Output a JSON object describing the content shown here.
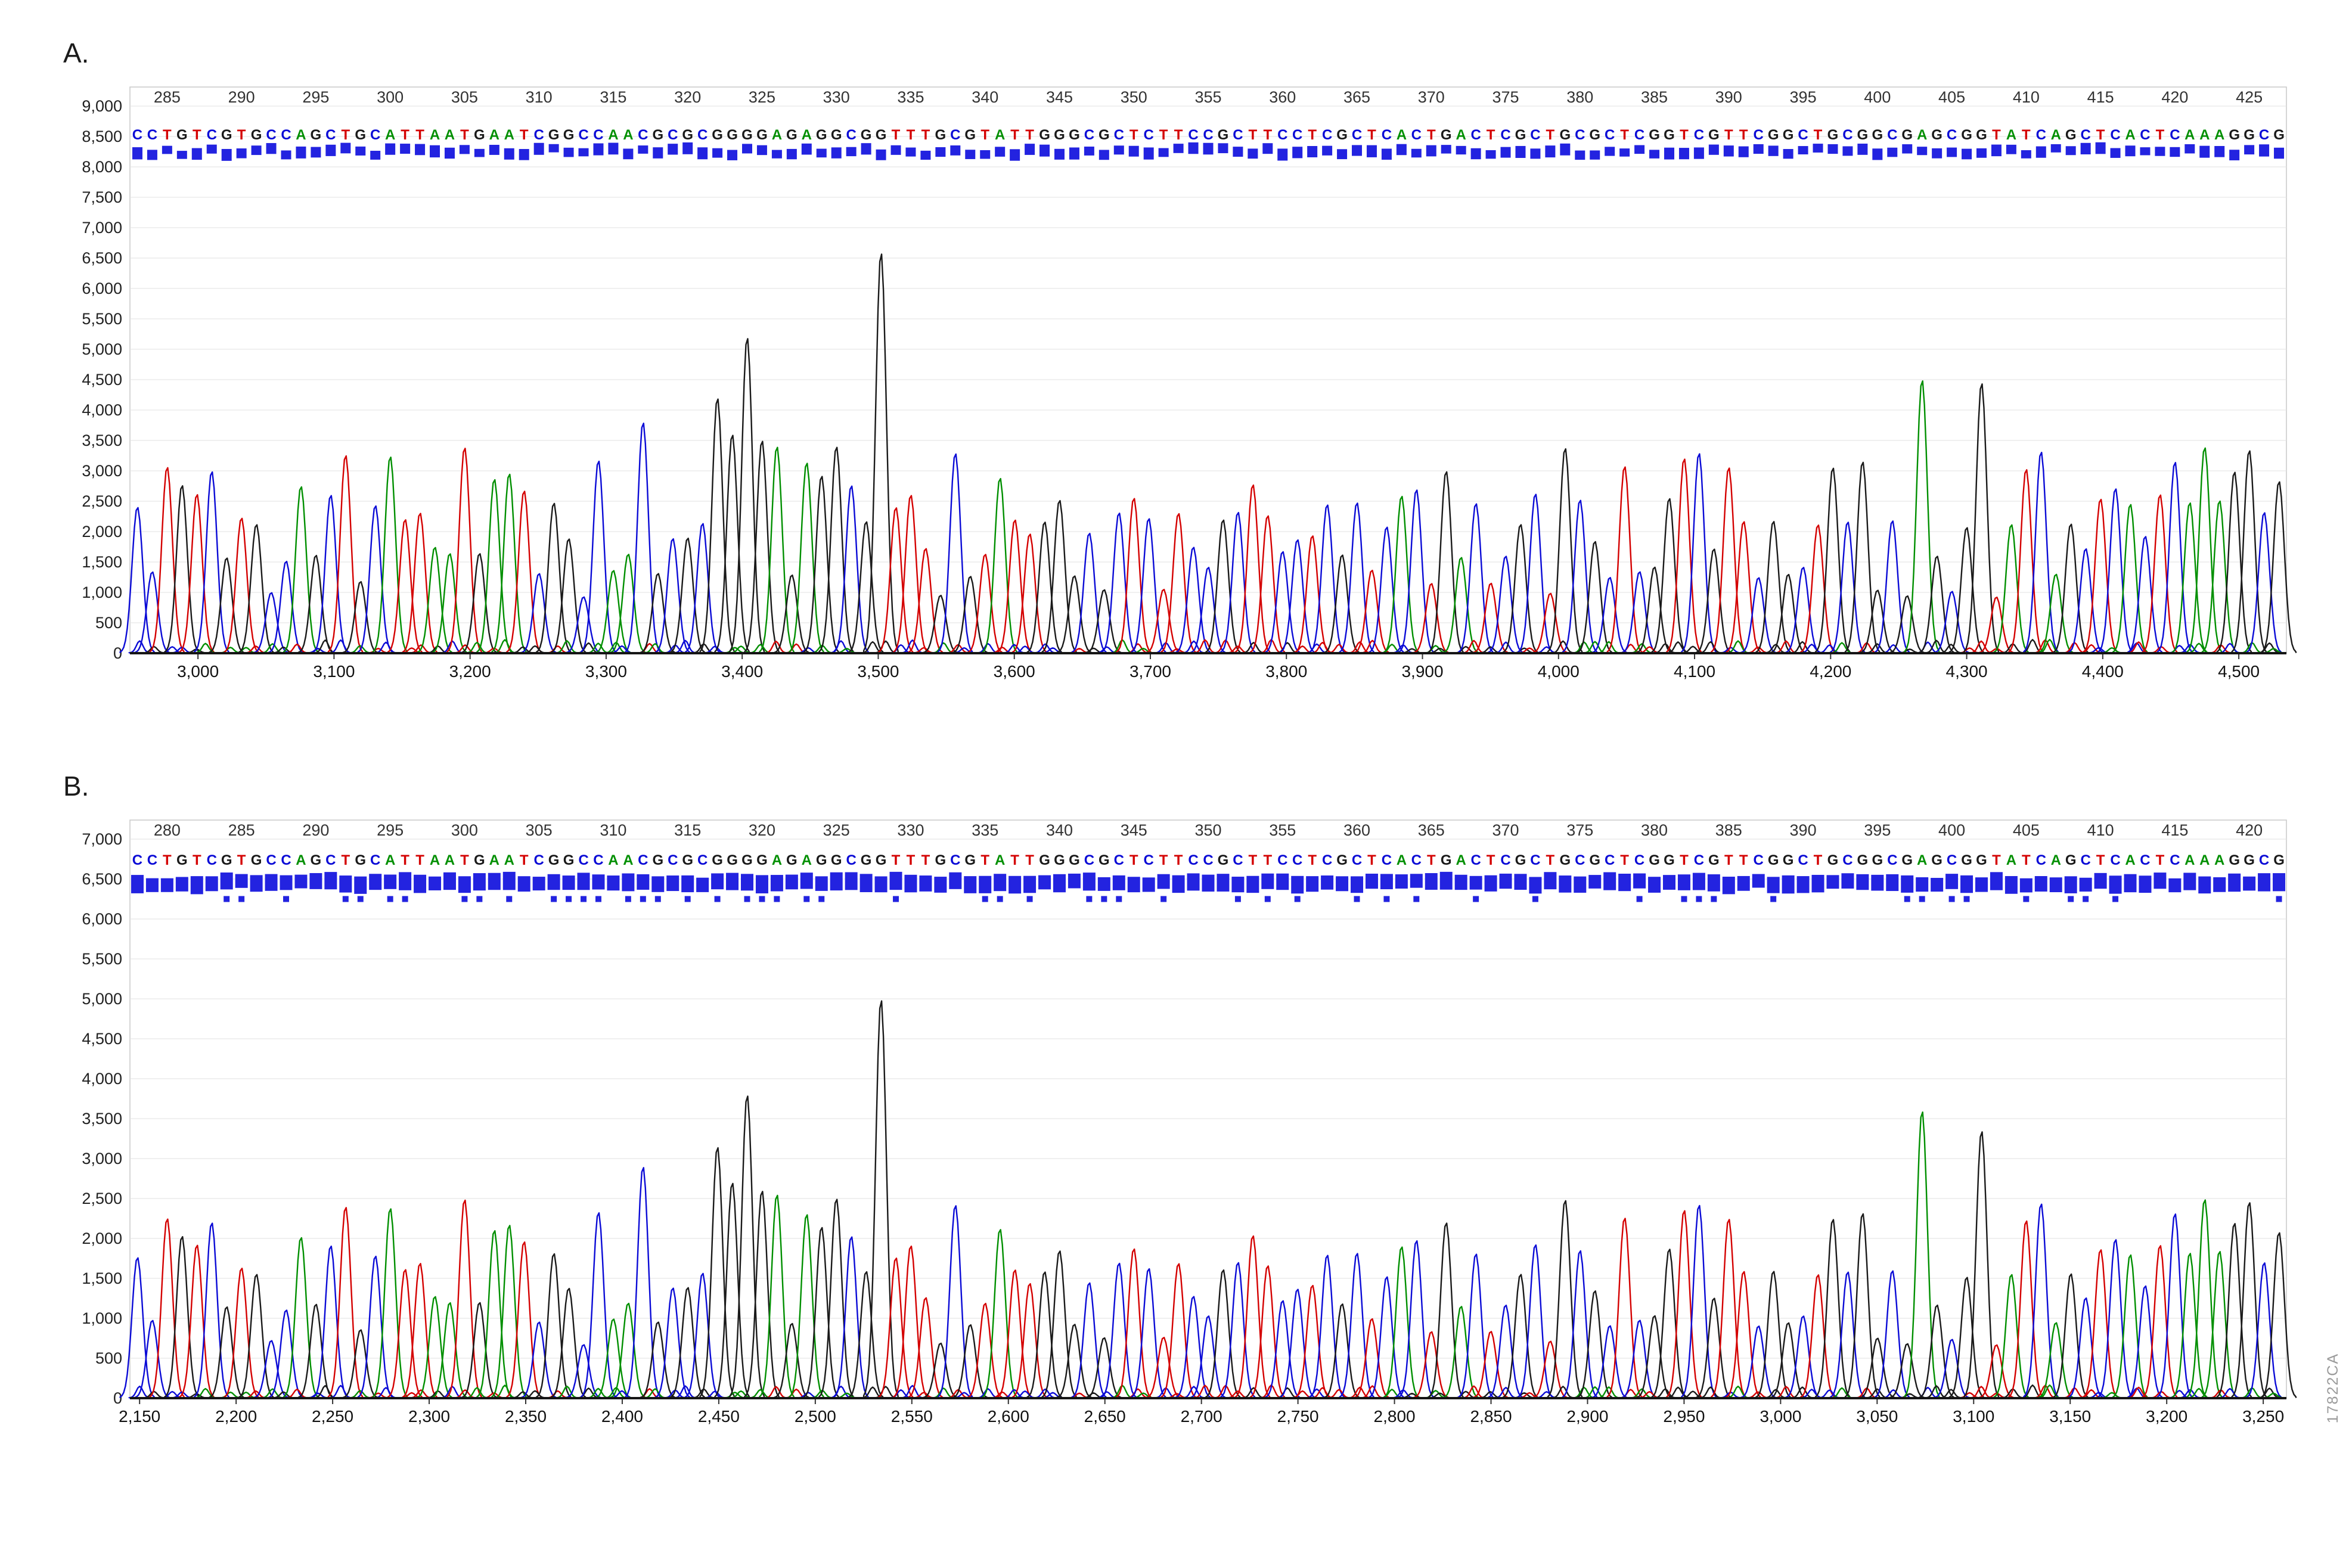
{
  "figure": {
    "watermark": "17822CA",
    "base_colors": {
      "A": "#008f00",
      "C": "#0b0bd6",
      "G": "#1a1a1a",
      "T": "#d40000"
    },
    "quality_bar_color": "#2323e0"
  },
  "panels": [
    {
      "label": "A."
    },
    {
      "label": "B."
    }
  ],
  "chart_data": [
    {
      "type": "line",
      "title": "Sanger sequencing electropherogram, panel A",
      "sequence": "CCTGTCGTGCCAGCTGCATTAATGAATCGGCCAACGCGCGGGGAGAGGCGGTTTGCGTATTGGGCGCTCTTCCGCTTCCTCGCTCACTGACTCGCTGCGCTCGGTCGTTCGGCTGCGGCGAGCGGTATCAGCTCACTCAAAGGCG",
      "first_base_position": 283,
      "base_position_ticks": [
        285,
        290,
        295,
        300,
        305,
        310,
        315,
        320,
        325,
        330,
        335,
        340,
        345,
        350,
        355,
        360,
        365,
        370,
        375,
        380,
        385,
        390,
        395,
        400,
        405,
        410,
        415,
        420,
        425
      ],
      "ylim": [
        0,
        9000
      ],
      "y_step": 500,
      "x_scan_range": [
        2950,
        4535
      ],
      "x_scan_ticks": [
        3000,
        3100,
        3200,
        3300,
        3400,
        3500,
        3600,
        3700,
        3800,
        3900,
        4000,
        4100,
        4200,
        4300,
        4400,
        4500
      ],
      "seq_y": 8450,
      "qbar": {
        "center": 8250,
        "h_min": 130,
        "h_max": 200,
        "jitter": 120,
        "width": 17,
        "sub": null
      },
      "peak_range": [
        900,
        3400
      ],
      "bump_range": [
        60,
        220
      ],
      "peak_overrides": {
        "34": 3800,
        "39": 4200,
        "40": 3600,
        "41": 5200,
        "42": 3500,
        "43": 3400,
        "47": 3400,
        "50": 6600,
        "120": 4500,
        "124": 4450
      },
      "seed": 42
    },
    {
      "type": "line",
      "title": "Sanger sequencing electropherogram, panel B",
      "sequence": "CCTGTCGTGCCAGCTGCATTAATGAATCGGCCAACGCGCGGGGAGAGGCGGTTTGCGTATTGGGCGCTCTTCCGCTTCCTCGCTCACTGACTCGCTGCGCTCGGTCGTTCGGCTGCGGCGAGCGGTATCAGCTCACTCAAAGGCG",
      "first_base_position": 278,
      "base_position_ticks": [
        280,
        285,
        290,
        295,
        300,
        305,
        310,
        315,
        320,
        325,
        330,
        335,
        340,
        345,
        350,
        355,
        360,
        365,
        370,
        375,
        380,
        385,
        390,
        395,
        400,
        405,
        410,
        415,
        420
      ],
      "ylim": [
        0,
        7000
      ],
      "y_step": 500,
      "x_scan_range": [
        2145,
        3262
      ],
      "x_scan_ticks": [
        2150,
        2200,
        2250,
        2300,
        2350,
        2400,
        2450,
        2500,
        2550,
        2600,
        2650,
        2700,
        2750,
        2800,
        2850,
        2900,
        2950,
        3000,
        3050,
        3100,
        3150,
        3200,
        3250
      ],
      "seq_y": 6680,
      "qbar": {
        "center": 6450,
        "h_min": 170,
        "h_max": 230,
        "jitter": 60,
        "width": 21,
        "sub": 6250
      },
      "peak_range": [
        650,
        2500
      ],
      "bump_range": [
        50,
        160
      ],
      "peak_overrides": {
        "34": 2900,
        "39": 3150,
        "40": 2700,
        "41": 3800,
        "42": 2600,
        "43": 2550,
        "47": 2500,
        "50": 5000,
        "120": 3600,
        "124": 3350
      },
      "seed": 42
    }
  ]
}
